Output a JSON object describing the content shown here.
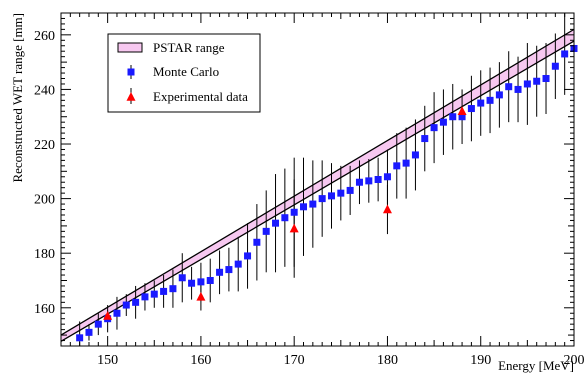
{
  "chart_data": {
    "type": "scatter",
    "xlabel": "Energy [MeV]",
    "ylabel": "Reconstructed WET range [mm]",
    "xlim": [
      145,
      200
    ],
    "ylim": [
      146,
      268
    ],
    "x_ticks": [
      150,
      160,
      170,
      180,
      190,
      200
    ],
    "y_ticks": [
      160,
      180,
      200,
      220,
      240,
      260
    ],
    "legend_position": "top-left",
    "colors": {
      "band_fill": "#f7c8f0",
      "band_edge": "#000000",
      "monte_carlo": "#1a1aff",
      "experimental": "#ff0000"
    },
    "series": [
      {
        "name": "PSTAR range",
        "kind": "band",
        "x": [
          145,
          200
        ],
        "lower": [
          147.7,
          257.7
        ],
        "upper": [
          150.0,
          262.0
        ]
      },
      {
        "name": "Monte Carlo",
        "kind": "points",
        "marker": "square",
        "x": [
          147,
          148,
          149,
          150,
          151,
          152,
          153,
          154,
          155,
          156,
          157,
          158,
          159,
          160,
          161,
          162,
          163,
          164,
          165,
          166,
          167,
          168,
          169,
          170,
          171,
          172,
          173,
          174,
          175,
          176,
          177,
          178,
          179,
          180,
          181,
          182,
          183,
          184,
          185,
          186,
          187,
          188,
          189,
          190,
          191,
          192,
          193,
          194,
          195,
          196,
          197,
          198,
          199,
          200
        ],
        "y": [
          149,
          151,
          154,
          156,
          158,
          161,
          162,
          164,
          165,
          166,
          167,
          171,
          169,
          169.5,
          170,
          173,
          174,
          176,
          179,
          184,
          188,
          191,
          193,
          195,
          197,
          198,
          200,
          201,
          202,
          203,
          206,
          206.5,
          207,
          208,
          212,
          213,
          216,
          222,
          226,
          228,
          230,
          230,
          233,
          235,
          236,
          238,
          241,
          240,
          242,
          243,
          244,
          248.5,
          253,
          255
        ],
        "error": [
          6,
          3,
          4,
          5,
          6,
          4,
          6,
          5,
          5,
          6,
          7,
          9,
          6,
          7,
          8,
          8,
          8,
          10,
          12,
          14,
          15,
          18,
          18,
          20,
          18,
          16,
          14,
          12,
          10,
          9,
          8,
          8,
          8,
          10,
          12,
          13,
          13,
          12,
          13,
          12,
          12,
          10,
          12,
          12,
          12,
          12,
          13,
          12,
          15,
          13,
          13,
          12,
          15,
          14
        ]
      },
      {
        "name": "Experimental data",
        "kind": "points",
        "marker": "triangle",
        "x": [
          150,
          160,
          170,
          180,
          188
        ],
        "y": [
          157,
          164,
          189,
          196,
          232
        ],
        "error": [
          2,
          5,
          18,
          9,
          0
        ]
      }
    ]
  }
}
